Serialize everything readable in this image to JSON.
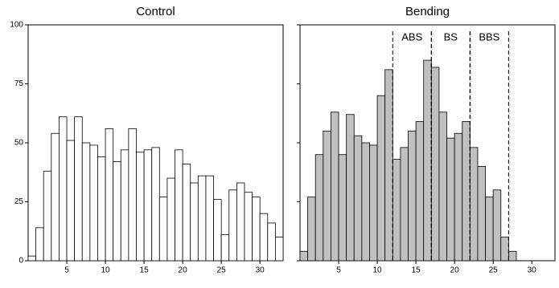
{
  "chart_data": [
    {
      "type": "histogram",
      "title": "Control",
      "color": "#ffffff",
      "bins": [
        0,
        1,
        2,
        3,
        4,
        5,
        6,
        7,
        8,
        9,
        10,
        11,
        12,
        13,
        14,
        15,
        16,
        17,
        18,
        19,
        20,
        21,
        22,
        23,
        24,
        25,
        26,
        27,
        28,
        29,
        30,
        31,
        32,
        33
      ],
      "values": [
        2,
        14,
        38,
        54,
        61,
        51,
        61,
        50,
        49,
        44,
        56,
        42,
        47,
        56,
        46,
        47,
        48,
        27,
        35,
        47,
        41,
        33,
        36,
        36,
        26,
        11,
        30,
        33,
        29,
        27,
        20,
        16,
        10
      ],
      "xlim": [
        0,
        33
      ],
      "ylim": [
        0,
        100
      ],
      "xticks": [
        5,
        10,
        15,
        20,
        25,
        30
      ],
      "yticks": [
        0,
        25,
        50,
        75,
        100
      ]
    },
    {
      "type": "histogram",
      "title": "Bending",
      "color": "#c0c0c0",
      "bins": [
        0,
        1,
        2,
        3,
        4,
        5,
        6,
        7,
        8,
        9,
        10,
        11,
        12,
        13,
        14,
        15,
        16,
        17,
        18,
        19,
        20,
        21,
        22,
        23,
        24,
        25,
        26,
        27,
        28
      ],
      "values": [
        4,
        27,
        45,
        55,
        63,
        45,
        62,
        53,
        50,
        49,
        70,
        81,
        43,
        48,
        55,
        59,
        85,
        82,
        63,
        52,
        54,
        59,
        48,
        40,
        27,
        30,
        10,
        4
      ],
      "xlim": [
        0,
        33
      ],
      "ylim": [
        0,
        100
      ],
      "xticks": [
        5,
        10,
        15,
        20,
        25,
        30
      ],
      "yticks": [
        0,
        25,
        50,
        75,
        100
      ],
      "regions": [
        {
          "label": "ABS",
          "from": 12,
          "to": 17
        },
        {
          "label": "BS",
          "from": 17,
          "to": 22
        },
        {
          "label": "BBS",
          "from": 22,
          "to": 27
        }
      ]
    }
  ]
}
